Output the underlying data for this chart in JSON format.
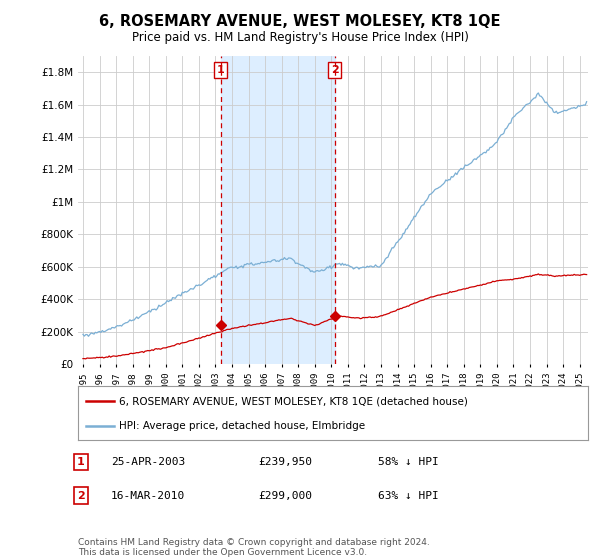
{
  "title": "6, ROSEMARY AVENUE, WEST MOLESEY, KT8 1QE",
  "subtitle": "Price paid vs. HM Land Registry's House Price Index (HPI)",
  "hpi_label": "HPI: Average price, detached house, Elmbridge",
  "price_label": "6, ROSEMARY AVENUE, WEST MOLESEY, KT8 1QE (detached house)",
  "hpi_color": "#7bafd4",
  "price_color": "#cc0000",
  "sale1_date": "25-APR-2003",
  "sale1_price": 239950,
  "sale1_note": "58% ↓ HPI",
  "sale2_date": "16-MAR-2010",
  "sale2_price": 299000,
  "sale2_note": "63% ↓ HPI",
  "sale1_year": 2003.32,
  "sale2_year": 2010.21,
  "background_color": "#ffffff",
  "grid_color": "#cccccc",
  "highlight_color": "#ddeeff",
  "footer": "Contains HM Land Registry data © Crown copyright and database right 2024.\nThis data is licensed under the Open Government Licence v3.0.",
  "ylim": [
    0,
    1900000
  ],
  "xlim_start": 1994.7,
  "xlim_end": 2025.5,
  "yticks": [
    0,
    200000,
    400000,
    600000,
    800000,
    1000000,
    1200000,
    1400000,
    1600000,
    1800000
  ]
}
